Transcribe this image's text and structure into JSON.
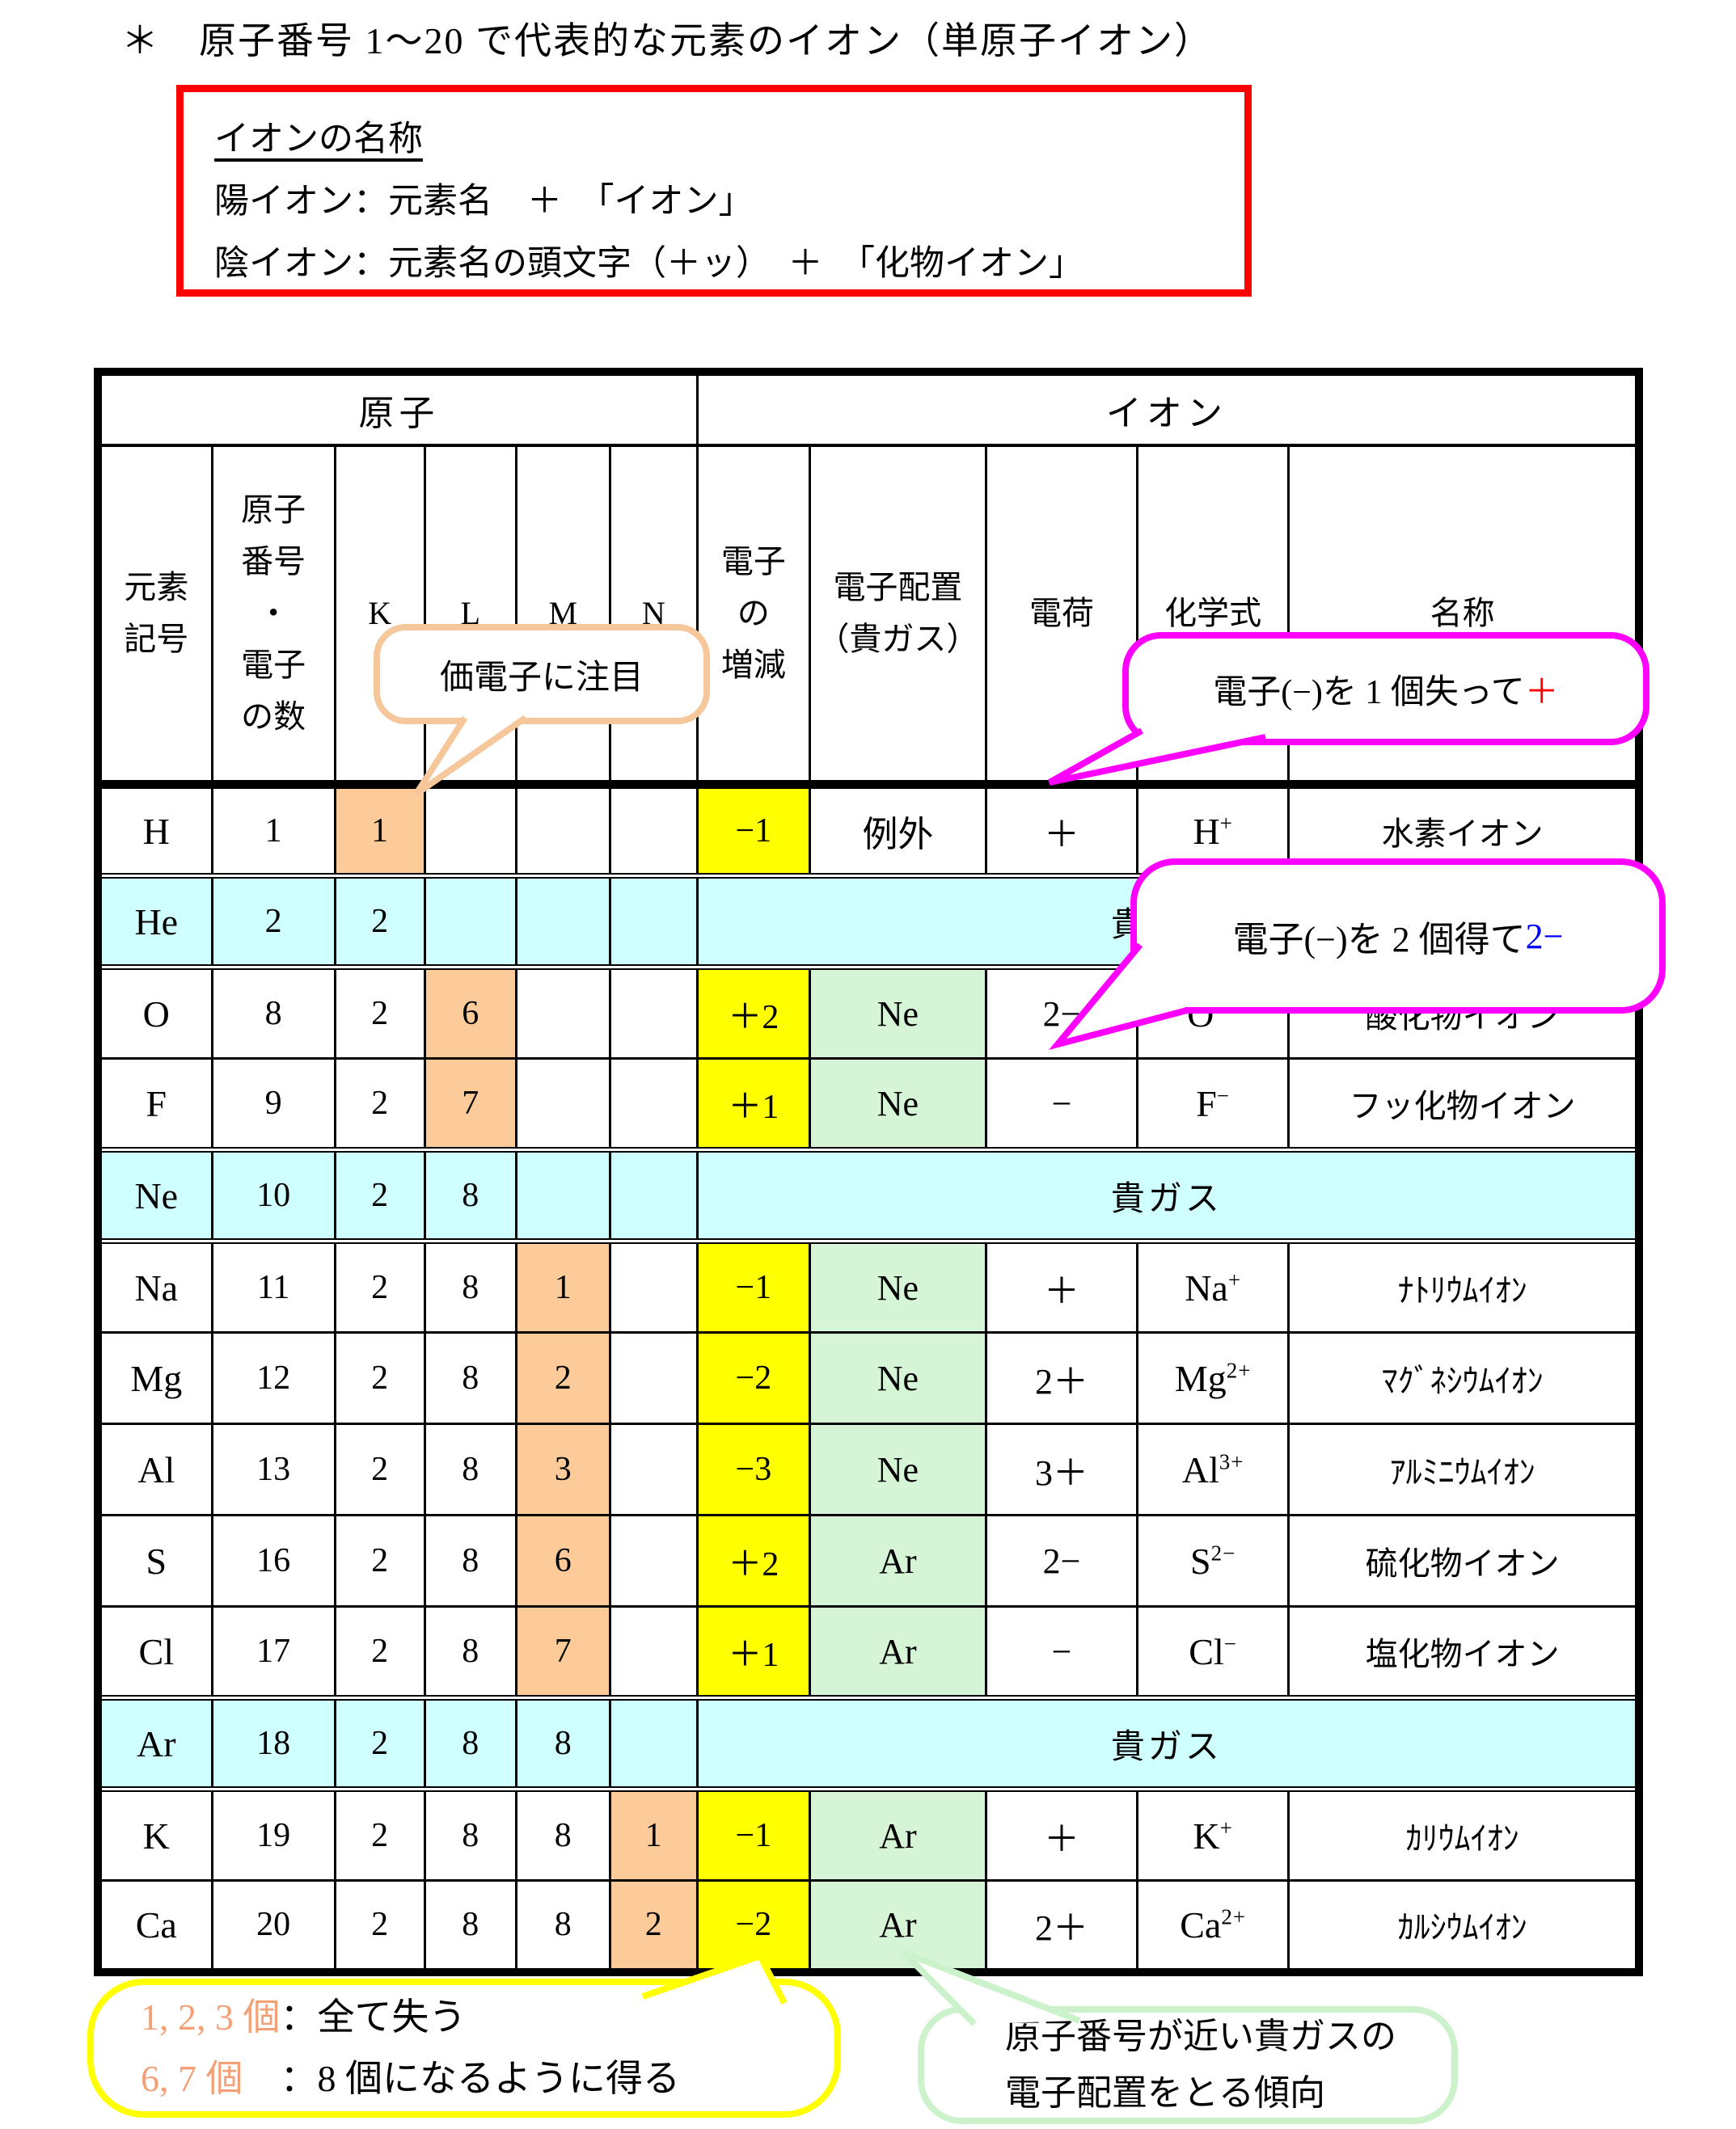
{
  "title": "＊　原子番号 1～20 で代表的な元素のイオン（単原子イオン）",
  "note_box": {
    "heading": "イオンの名称",
    "lines": [
      "陽イオン：元素名　＋　「イオン」",
      "陰イオン：元素名の頭文字（＋ッ）　＋　「化物イオン」"
    ]
  },
  "table": {
    "group_headers": {
      "atom": "原子",
      "ion": "イオン"
    },
    "headers": {
      "symbol": "元素\n記号",
      "number": "原子\n番号\n・\n電子\nの数",
      "shell_k": "K",
      "shell_l": "L",
      "shell_m": "M",
      "shell_n": "N",
      "delta": "電子\nの\n増減",
      "config": "電子配置\n（貴ガス）",
      "charge": "電荷",
      "formula": "化学式",
      "name": "名称"
    },
    "rows": [
      {
        "type": "element",
        "symbol": "H",
        "number": "1",
        "shells": {
          "K": "1",
          "L": "",
          "M": "",
          "N": ""
        },
        "highlight": "K",
        "delta": "−1",
        "config": "例外",
        "config_noble": false,
        "charge": "＋",
        "formula": {
          "base": "H",
          "sup": "+"
        },
        "name": "水素イオン"
      },
      {
        "type": "noble",
        "symbol": "He",
        "number": "2",
        "shells": {
          "K": "2",
          "L": "",
          "M": "",
          "N": ""
        },
        "label": "貴ガス"
      },
      {
        "type": "element",
        "symbol": "O",
        "number": "8",
        "shells": {
          "K": "2",
          "L": "6",
          "M": "",
          "N": ""
        },
        "highlight": "L",
        "delta": "＋2",
        "config": "Ne",
        "config_noble": true,
        "charge": "2−",
        "formula": {
          "base": "O",
          "sup": "2−"
        },
        "name": "酸化物イオン"
      },
      {
        "type": "element",
        "symbol": "F",
        "number": "9",
        "shells": {
          "K": "2",
          "L": "7",
          "M": "",
          "N": ""
        },
        "highlight": "L",
        "delta": "＋1",
        "config": "Ne",
        "config_noble": true,
        "charge": "−",
        "formula": {
          "base": "F",
          "sup": "−"
        },
        "name": "フッ化物イオン"
      },
      {
        "type": "noble",
        "symbol": "Ne",
        "number": "10",
        "shells": {
          "K": "2",
          "L": "8",
          "M": "",
          "N": ""
        },
        "label": "貴ガス"
      },
      {
        "type": "element",
        "symbol": "Na",
        "number": "11",
        "shells": {
          "K": "2",
          "L": "8",
          "M": "1",
          "N": ""
        },
        "highlight": "M",
        "delta": "−1",
        "config": "Ne",
        "config_noble": true,
        "charge": "＋",
        "formula": {
          "base": "Na",
          "sup": "+"
        },
        "name": "ﾅﾄﾘｳﾑｲｵﾝ"
      },
      {
        "type": "element",
        "symbol": "Mg",
        "number": "12",
        "shells": {
          "K": "2",
          "L": "8",
          "M": "2",
          "N": ""
        },
        "highlight": "M",
        "delta": "−2",
        "config": "Ne",
        "config_noble": true,
        "charge": "2＋",
        "formula": {
          "base": "Mg",
          "sup": "2+"
        },
        "name": "ﾏｸﾞﾈｼｳﾑｲｵﾝ"
      },
      {
        "type": "element",
        "symbol": "Al",
        "number": "13",
        "shells": {
          "K": "2",
          "L": "8",
          "M": "3",
          "N": ""
        },
        "highlight": "M",
        "delta": "−3",
        "config": "Ne",
        "config_noble": true,
        "charge": "3＋",
        "formula": {
          "base": "Al",
          "sup": "3+"
        },
        "name": "ｱﾙﾐﾆｳﾑｲｵﾝ"
      },
      {
        "type": "element",
        "symbol": "S",
        "number": "16",
        "shells": {
          "K": "2",
          "L": "8",
          "M": "6",
          "N": ""
        },
        "highlight": "M",
        "delta": "＋2",
        "config": "Ar",
        "config_noble": true,
        "charge": "2−",
        "formula": {
          "base": "S",
          "sup": "2−"
        },
        "name": "硫化物イオン"
      },
      {
        "type": "element",
        "symbol": "Cl",
        "number": "17",
        "shells": {
          "K": "2",
          "L": "8",
          "M": "7",
          "N": ""
        },
        "highlight": "M",
        "delta": "＋1",
        "config": "Ar",
        "config_noble": true,
        "charge": "−",
        "formula": {
          "base": "Cl",
          "sup": "−"
        },
        "name": "塩化物イオン"
      },
      {
        "type": "noble",
        "symbol": "Ar",
        "number": "18",
        "shells": {
          "K": "2",
          "L": "8",
          "M": "8",
          "N": ""
        },
        "label": "貴ガス"
      },
      {
        "type": "element",
        "symbol": "K",
        "number": "19",
        "shells": {
          "K": "2",
          "L": "8",
          "M": "8",
          "N": "1"
        },
        "highlight": "N",
        "delta": "−1",
        "config": "Ar",
        "config_noble": true,
        "charge": "＋",
        "formula": {
          "base": "K",
          "sup": "+"
        },
        "name": "ｶﾘｳﾑｲｵﾝ"
      },
      {
        "type": "element",
        "symbol": "Ca",
        "number": "20",
        "shells": {
          "K": "2",
          "L": "8",
          "M": "8",
          "N": "2"
        },
        "highlight": "N",
        "delta": "−2",
        "config": "Ar",
        "config_noble": true,
        "charge": "2＋",
        "formula": {
          "base": "Ca",
          "sup": "2+"
        },
        "name": "ｶﾙｼｳﾑｲｵﾝ"
      }
    ]
  },
  "callouts": {
    "valence": {
      "text": "価電子に注目"
    },
    "lose_one": {
      "text": "電子(−)を 1 個失って",
      "accent": "＋"
    },
    "gain_two": {
      "text": "電子(−)を 2 個得て ",
      "accent": "2−"
    },
    "count_rule": {
      "line1_accent": "1, 2, 3 個",
      "line1_text": "：全て失う",
      "line2_accent": "6, 7 個",
      "line2_text": "　：8 個になるように得る"
    },
    "noble_rule": {
      "line1": "原子番号が近い貴ガスの",
      "line2": "電子配置をとる傾向"
    }
  },
  "colors": {
    "table_border": "#000000",
    "highlight_orange": "#FCCB99",
    "change_yellow": "#FFFF00",
    "noble_cyan": "#CFFFFF",
    "config_green": "#D6F5D6",
    "note_box_red": "#FF0000",
    "callout_pink": "#FF00FF",
    "callout_peach": "#F6C79B",
    "callout_yellow": "#FFFF00",
    "callout_green": "#CBF2CB",
    "accent_red": "#FF0000",
    "accent_blue": "#0000FF",
    "accent_salmon": "#F2A077"
  }
}
